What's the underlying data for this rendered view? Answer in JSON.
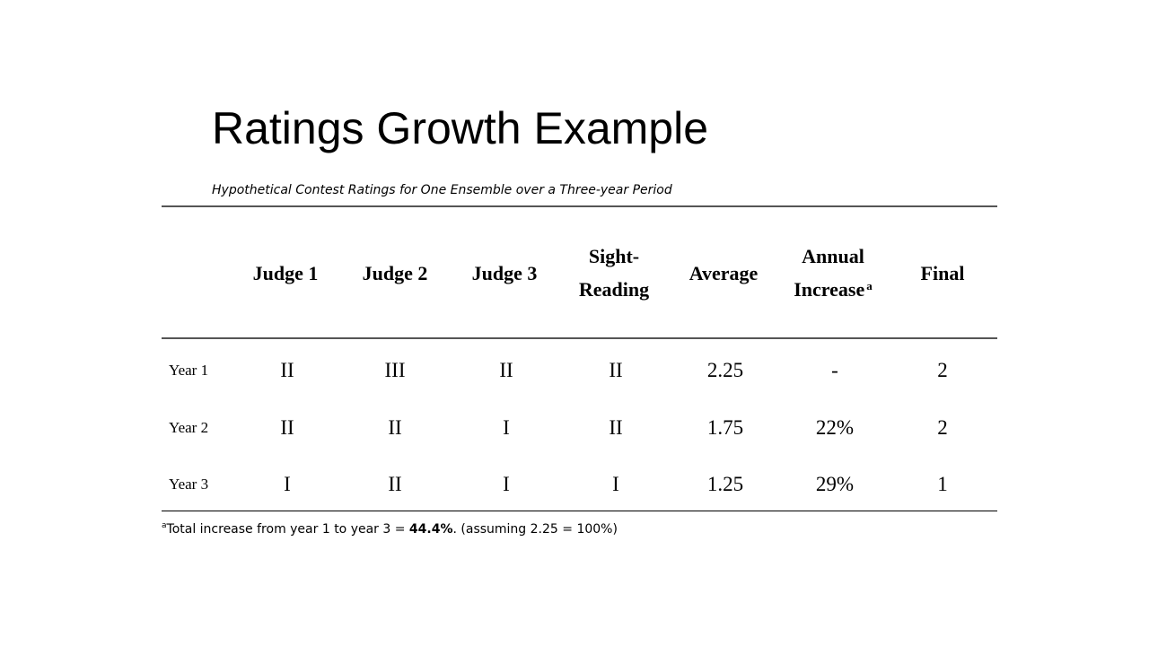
{
  "title": "Ratings Growth Example",
  "subtitle": "Hypothetical Contest Ratings for One Ensemble over a Three-year Period",
  "columns": {
    "judge1": "Judge 1",
    "judge2": "Judge 2",
    "judge3": "Judge 3",
    "sight_line1": "Sight-",
    "sight_line2": "Reading",
    "average": "Average",
    "annual_line1": "Annual",
    "annual_line2": "Increase",
    "annual_sup": "a",
    "final": "Final"
  },
  "rows": [
    {
      "label": "Year 1",
      "judge1": "II",
      "judge2": "III",
      "judge3": "II",
      "sight": "II",
      "average": "2.25",
      "annual": "-",
      "final": "2"
    },
    {
      "label": "Year 2",
      "judge1": "II",
      "judge2": "II",
      "judge3": "I",
      "sight": "II",
      "average": "1.75",
      "annual": "22%",
      "final": "2"
    },
    {
      "label": "Year 3",
      "judge1": "I",
      "judge2": "II",
      "judge3": "I",
      "sight": "I",
      "average": "1.25",
      "annual": "29%",
      "final": "1"
    }
  ],
  "footnote": {
    "sup": "a",
    "text_before": "Total increase from year 1 to year 3 = ",
    "bold_value": "44.4%",
    "text_after": ". (assuming 2.25 = 100%)"
  }
}
